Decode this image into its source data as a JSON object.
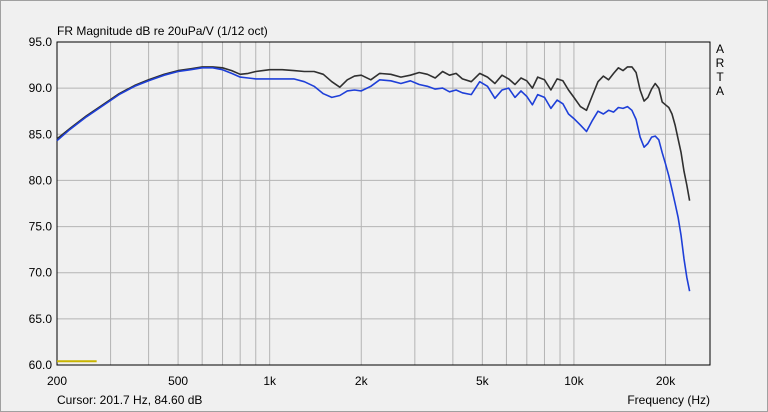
{
  "chart_data": {
    "type": "line",
    "title": "FR Magnitude dB re 20uPa/V (1/12 oct)",
    "xlabel": "Frequency (Hz)",
    "ylabel": "",
    "x_scale": "log",
    "xlim": [
      200,
      28000
    ],
    "ylim": [
      60,
      95
    ],
    "grid": true,
    "x_tick_labels": [
      {
        "value": 200,
        "label": "200"
      },
      {
        "value": 500,
        "label": "500"
      },
      {
        "value": 1000,
        "label": "1k"
      },
      {
        "value": 2000,
        "label": "2k"
      },
      {
        "value": 5000,
        "label": "5k"
      },
      {
        "value": 10000,
        "label": "10k"
      },
      {
        "value": 20000,
        "label": "20k"
      }
    ],
    "x_minor_ticks": [
      300,
      400,
      600,
      700,
      800,
      900,
      3000,
      4000,
      6000,
      7000,
      8000,
      9000
    ],
    "y_ticks": [
      {
        "value": 95,
        "label": "95.0"
      },
      {
        "value": 90,
        "label": "90.0"
      },
      {
        "value": 85,
        "label": "85.0"
      },
      {
        "value": 80,
        "label": "80.0"
      },
      {
        "value": 75,
        "label": "75.0"
      },
      {
        "value": 70,
        "label": "70.0"
      },
      {
        "value": 65,
        "label": "65.0"
      },
      {
        "value": 60,
        "label": "60.0"
      }
    ],
    "watermark_letters": [
      "A",
      "R",
      "T",
      "A"
    ],
    "cursor_readout": "Cursor: 201.7 Hz, 84.60 dB",
    "series": [
      {
        "color": "#303030",
        "x": [
          200,
          220,
          250,
          280,
          320,
          360,
          400,
          450,
          500,
          550,
          600,
          650,
          700,
          750,
          800,
          850,
          900,
          950,
          1000,
          1100,
          1200,
          1300,
          1400,
          1500,
          1600,
          1700,
          1800,
          1900,
          2000,
          2150,
          2300,
          2500,
          2700,
          2900,
          3100,
          3300,
          3500,
          3700,
          3900,
          4100,
          4300,
          4600,
          4900,
          5200,
          5500,
          5800,
          6100,
          6400,
          6700,
          7000,
          7300,
          7600,
          8000,
          8400,
          8800,
          9200,
          9600,
          10000,
          10500,
          11000,
          11500,
          12000,
          12500,
          13000,
          13500,
          14000,
          14500,
          15000,
          15500,
          16000,
          16500,
          17000,
          17500,
          18000,
          18500,
          19000,
          19500,
          20000,
          20500,
          21000,
          21500,
          22000,
          22500,
          23000,
          23500,
          24000
        ],
        "y": [
          84.5,
          85.6,
          87.0,
          88.1,
          89.4,
          90.3,
          90.9,
          91.5,
          91.9,
          92.1,
          92.3,
          92.3,
          92.2,
          91.9,
          91.5,
          91.6,
          91.8,
          91.9,
          92.0,
          92.0,
          91.9,
          91.8,
          91.8,
          91.5,
          90.7,
          90.1,
          90.9,
          91.3,
          91.4,
          90.9,
          91.6,
          91.5,
          91.2,
          91.4,
          91.7,
          91.5,
          91.1,
          91.8,
          91.4,
          91.6,
          91.0,
          90.7,
          91.6,
          91.2,
          90.5,
          91.4,
          91.0,
          90.4,
          91.1,
          90.8,
          90.0,
          91.2,
          90.9,
          89.8,
          91.0,
          90.8,
          89.8,
          89.0,
          88.0,
          87.6,
          89.2,
          90.7,
          91.3,
          90.9,
          91.6,
          92.2,
          91.9,
          92.3,
          92.3,
          91.7,
          89.8,
          88.6,
          89.0,
          89.9,
          90.5,
          90.0,
          88.5,
          88.2,
          87.9,
          87.2,
          86.0,
          84.5,
          83.0,
          81.0,
          79.5,
          77.8
        ]
      },
      {
        "color": "#1e3fd8",
        "x": [
          200,
          220,
          250,
          280,
          320,
          360,
          400,
          450,
          500,
          550,
          600,
          650,
          700,
          750,
          800,
          850,
          900,
          950,
          1000,
          1100,
          1200,
          1300,
          1400,
          1500,
          1600,
          1700,
          1800,
          1900,
          2000,
          2150,
          2300,
          2500,
          2700,
          2900,
          3100,
          3300,
          3500,
          3700,
          3900,
          4100,
          4300,
          4600,
          4900,
          5200,
          5500,
          5800,
          6100,
          6400,
          6700,
          7000,
          7300,
          7600,
          8000,
          8400,
          8800,
          9200,
          9600,
          10000,
          10500,
          11000,
          11500,
          12000,
          12500,
          13000,
          13500,
          14000,
          14500,
          15000,
          15500,
          16000,
          16500,
          17000,
          17500,
          18000,
          18500,
          19000,
          19500,
          20000,
          20500,
          21000,
          21500,
          22000,
          22500,
          23000,
          23500,
          24000
        ],
        "y": [
          84.3,
          85.5,
          86.9,
          88.0,
          89.3,
          90.2,
          90.8,
          91.4,
          91.8,
          92.0,
          92.2,
          92.2,
          92.0,
          91.6,
          91.2,
          91.1,
          91.0,
          91.0,
          91.0,
          91.0,
          91.0,
          90.7,
          90.2,
          89.4,
          89.0,
          89.2,
          89.7,
          89.8,
          89.7,
          90.2,
          90.9,
          90.8,
          90.5,
          90.8,
          90.4,
          90.2,
          89.9,
          90.0,
          89.6,
          89.8,
          89.5,
          89.3,
          90.7,
          90.2,
          88.9,
          89.8,
          90.0,
          89.0,
          89.7,
          89.1,
          88.2,
          89.3,
          89.0,
          87.8,
          88.7,
          88.3,
          87.2,
          86.7,
          86.0,
          85.3,
          86.5,
          87.5,
          87.2,
          87.6,
          87.4,
          87.9,
          87.8,
          88.0,
          87.6,
          86.6,
          84.7,
          83.6,
          84.0,
          84.7,
          84.8,
          84.4,
          83.0,
          81.8,
          80.5,
          79.0,
          77.5,
          76.0,
          74.0,
          71.5,
          69.5,
          68.0
        ]
      }
    ],
    "reference_marker": {
      "x": [
        200,
        270
      ],
      "y": 60.4,
      "color": "#c8b400"
    }
  }
}
